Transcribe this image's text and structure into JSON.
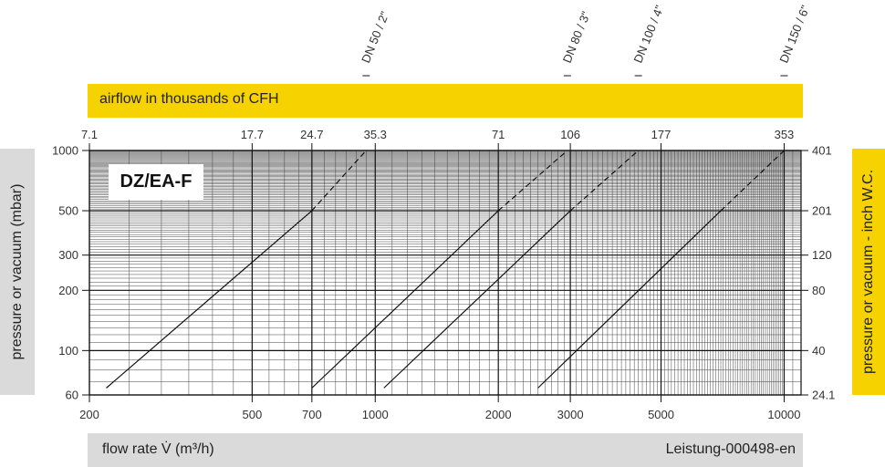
{
  "chart_data": {
    "type": "line",
    "title": "DZ/EA-F",
    "xlabel": "flow rate V̇ (m³/h)",
    "ylabel_left": "pressure or vacuum  (mbar)",
    "ylabel_right": "pressure or vacuum - inch W.C.",
    "top_axis_label": "airflow in thousands of CFH",
    "document_code": "Leistung-000498-en",
    "x_scale": "log",
    "y_scale": "log",
    "xlim": [
      200,
      11000
    ],
    "ylim": [
      60,
      1000
    ],
    "grid": true,
    "x_ticks": [
      200,
      500,
      700,
      1000,
      2000,
      3000,
      5000,
      10000
    ],
    "x_tick_labels": [
      "200",
      "500",
      "700",
      "1000",
      "2000",
      "3000",
      "5000",
      "10000"
    ],
    "y_ticks": [
      60,
      100,
      200,
      300,
      500,
      1000
    ],
    "y_tick_labels": [
      "60",
      "100",
      "200",
      "300",
      "500",
      "1000"
    ],
    "top_ticks": [
      200,
      500,
      700,
      1000,
      2000,
      3000,
      5000,
      10000
    ],
    "top_tick_labels": [
      "7.1",
      "17.7",
      "24.7",
      "35.3",
      "71",
      "106",
      "177",
      "353"
    ],
    "right_ticks": [
      60,
      100,
      200,
      300,
      500,
      1000
    ],
    "right_tick_labels": [
      "24.1",
      "40",
      "80",
      "120",
      "201",
      "401"
    ],
    "series": [
      {
        "name": "DN 50 / 2\"",
        "x": [
          220,
          700,
          950
        ],
        "y": [
          65,
          500,
          1000
        ],
        "dashed_from_index": 1
      },
      {
        "name": "DN 80 / 3\"",
        "x": [
          700,
          2000,
          2950
        ],
        "y": [
          65,
          500,
          1000
        ],
        "dashed_from_index": 1
      },
      {
        "name": "DN 100 / 4\"",
        "x": [
          1050,
          3000,
          4400
        ],
        "y": [
          65,
          500,
          1000
        ],
        "dashed_from_index": 1
      },
      {
        "name": "DN 150 / 6\"",
        "x": [
          2500,
          7000,
          10000
        ],
        "y": [
          65,
          500,
          1000
        ],
        "dashed_from_index": 1
      }
    ]
  },
  "labels": {
    "title": "DZ/EA-F",
    "top_bar": "airflow in thousands of CFH",
    "xlabel": "flow rate V̇ (m³/h)",
    "code": "Leistung-000498-en",
    "ylabel_left": "pressure or vacuum  (mbar)",
    "ylabel_right": "pressure or vacuum - inch W.C."
  }
}
